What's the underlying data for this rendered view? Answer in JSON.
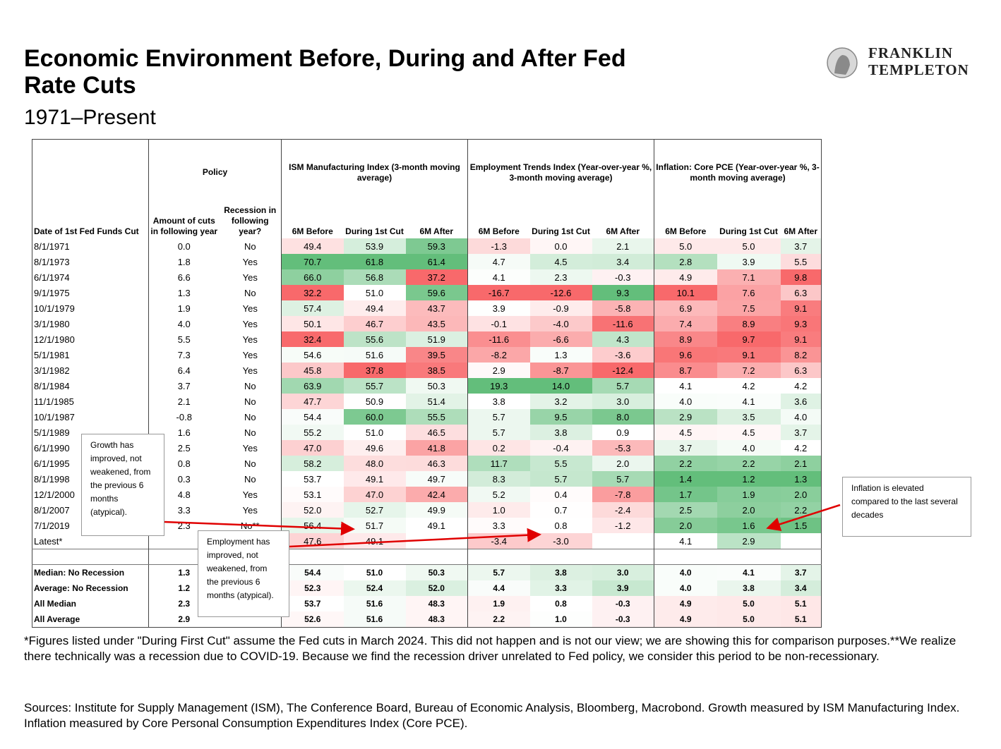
{
  "header": {
    "title": "Economic Environment Before, During and After Fed Rate Cuts",
    "subtitle": "1971–Present"
  },
  "logo": {
    "line1": "FRANKLIN",
    "line2": "TEMPLETON"
  },
  "table": {
    "group_headers": [
      "Policy",
      "ISM Manufacturing Index (3-month moving average)",
      "Employment Trends Index (Year-over-year %, 3-month moving average)",
      "Inflation: Core PCE (Year-over-year %, 3-month moving average)"
    ],
    "columns": [
      "Date of 1st Fed Funds Cut",
      "Amount of cuts in following year",
      "Recession in following year?",
      "6M Before",
      "During 1st Cut",
      "6M After",
      "6M Before",
      "During 1st Cut",
      "6M After",
      "6M Before",
      "During 1st Cut",
      "6M After"
    ],
    "rows": [
      [
        "8/1/1971",
        "0.0",
        "No",
        "49.4",
        "53.9",
        "59.3",
        "-1.3",
        "0.0",
        "2.1",
        "5.0",
        "5.0",
        "3.7"
      ],
      [
        "8/1/1973",
        "1.8",
        "Yes",
        "70.7",
        "61.8",
        "61.4",
        "4.7",
        "4.5",
        "3.4",
        "2.8",
        "3.9",
        "5.5"
      ],
      [
        "6/1/1974",
        "6.6",
        "Yes",
        "66.0",
        "56.8",
        "37.2",
        "4.1",
        "2.3",
        "-0.3",
        "4.9",
        "7.1",
        "9.8"
      ],
      [
        "9/1/1975",
        "1.3",
        "No",
        "32.2",
        "51.0",
        "59.6",
        "-16.7",
        "-12.6",
        "9.3",
        "10.1",
        "7.6",
        "6.3"
      ],
      [
        "10/1/1979",
        "1.9",
        "Yes",
        "57.4",
        "49.4",
        "43.7",
        "3.9",
        "-0.9",
        "-5.8",
        "6.9",
        "7.5",
        "9.1"
      ],
      [
        "3/1/1980",
        "4.0",
        "Yes",
        "50.1",
        "46.7",
        "43.5",
        "-0.1",
        "-4.0",
        "-11.6",
        "7.4",
        "8.9",
        "9.3"
      ],
      [
        "12/1/1980",
        "5.5",
        "Yes",
        "32.4",
        "55.6",
        "51.9",
        "-11.6",
        "-6.6",
        "4.3",
        "8.9",
        "9.7",
        "9.1"
      ],
      [
        "5/1/1981",
        "7.3",
        "Yes",
        "54.6",
        "51.6",
        "39.5",
        "-8.2",
        "1.3",
        "-3.6",
        "9.6",
        "9.1",
        "8.2"
      ],
      [
        "3/1/1982",
        "6.4",
        "Yes",
        "45.8",
        "37.8",
        "38.5",
        "2.9",
        "-8.7",
        "-12.4",
        "8.7",
        "7.2",
        "6.3"
      ],
      [
        "8/1/1984",
        "3.7",
        "No",
        "63.9",
        "55.7",
        "50.3",
        "19.3",
        "14.0",
        "5.7",
        "4.1",
        "4.2",
        "4.2"
      ],
      [
        "11/1/1985",
        "2.1",
        "No",
        "47.7",
        "50.9",
        "51.4",
        "3.8",
        "3.2",
        "3.0",
        "4.0",
        "4.1",
        "3.6"
      ],
      [
        "10/1/1987",
        "-0.8",
        "No",
        "54.4",
        "60.0",
        "55.5",
        "5.7",
        "9.5",
        "8.0",
        "2.9",
        "3.5",
        "4.0"
      ],
      [
        "5/1/1989",
        "1.6",
        "No",
        "55.2",
        "51.0",
        "46.5",
        "5.7",
        "3.8",
        "0.9",
        "4.5",
        "4.5",
        "3.7"
      ],
      [
        "6/1/1990",
        "2.5",
        "Yes",
        "47.0",
        "49.6",
        "41.8",
        "0.2",
        "-0.4",
        "-5.3",
        "3.7",
        "4.0",
        "4.2"
      ],
      [
        "6/1/1995",
        "0.8",
        "No",
        "58.2",
        "48.0",
        "46.3",
        "11.7",
        "5.5",
        "2.0",
        "2.2",
        "2.2",
        "2.1"
      ],
      [
        "8/1/1998",
        "0.3",
        "No",
        "53.7",
        "49.1",
        "49.7",
        "8.3",
        "5.7",
        "5.7",
        "1.4",
        "1.2",
        "1.3"
      ],
      [
        "12/1/2000",
        "4.8",
        "Yes",
        "53.1",
        "47.0",
        "42.4",
        "5.2",
        "0.4",
        "-7.8",
        "1.7",
        "1.9",
        "2.0"
      ],
      [
        "8/1/2007",
        "3.3",
        "Yes",
        "52.0",
        "52.7",
        "49.9",
        "1.0",
        "0.7",
        "-2.4",
        "2.5",
        "2.0",
        "2.2"
      ],
      [
        "7/1/2019",
        "2.3",
        "No**",
        "56.4",
        "51.7",
        "49.1",
        "3.3",
        "0.8",
        "-1.2",
        "2.0",
        "1.6",
        "1.5"
      ],
      [
        "Latest*",
        null,
        null,
        "47.6",
        "49.1",
        null,
        "-3.4",
        "-3.0",
        null,
        "4.1",
        "2.9",
        null
      ]
    ],
    "summary_rows": [
      [
        "Median: No Recession",
        "1.3",
        null,
        "54.4",
        "51.0",
        "50.3",
        "5.7",
        "3.8",
        "3.0",
        "4.0",
        "4.1",
        "3.7"
      ],
      [
        "Average: No Recession",
        "1.2",
        null,
        "52.3",
        "52.4",
        "52.0",
        "4.4",
        "3.3",
        "3.9",
        "4.0",
        "3.8",
        "3.4"
      ],
      [
        "All Median",
        "2.3",
        null,
        "53.7",
        "51.6",
        "48.3",
        "1.9",
        "0.8",
        "-0.3",
        "4.9",
        "5.0",
        "5.1"
      ],
      [
        "All Average",
        "2.9",
        null,
        "52.6",
        "51.6",
        "48.3",
        "2.2",
        "1.0",
        "-0.3",
        "4.9",
        "5.0",
        "5.1"
      ]
    ]
  },
  "annotations": [
    "Growth has improved, not weakened, from the previous 6 months (atypical).",
    "Employment has improved, not weakened, from the previous 6 months (atypical).",
    "Inflation is elevated compared to the last several decades"
  ],
  "footnote": "*Figures listed under \"During First  Cut\" assume the Fed cuts in March 2024. This did not happen and is not our view; we are showing this for comparison purposes.**We realize there technically was a recession due to COVID-19. Because we find the recession driver unrelated to Fed policy, we consider this period to be non-recessionary.",
  "sources": "Sources: Institute for Supply Management (ISM), The Conference Board, Bureau of Economic Analysis, Bloomberg, Macrobond. Growth measured by ISM Manufacturing Index. Inflation measured by Core Personal Consumption Expenditures Index (Core PCE)."
}
